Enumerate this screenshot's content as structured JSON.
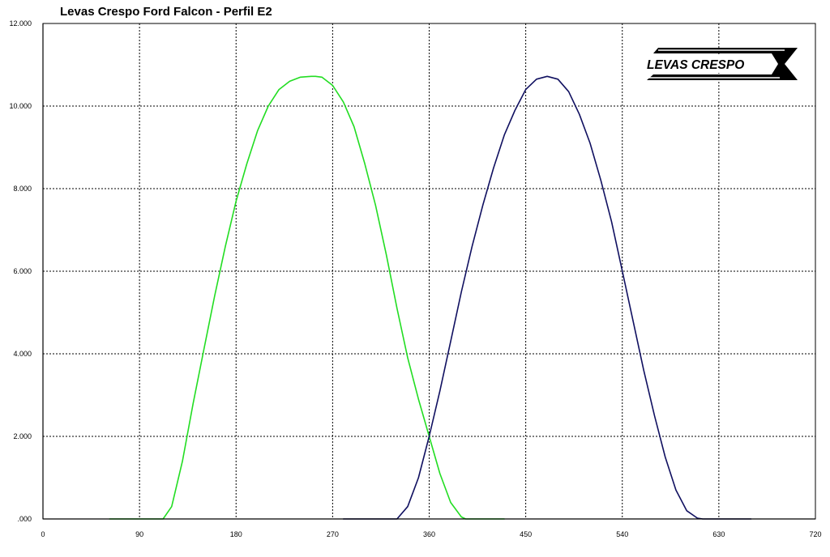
{
  "chart_data": {
    "type": "line",
    "title": "Levas Crespo Ford Falcon - Perfil E2",
    "xlabel": "",
    "ylabel": "",
    "xlim": [
      0,
      720
    ],
    "ylim": [
      0,
      12
    ],
    "x_ticks": [
      0,
      90,
      180,
      270,
      360,
      450,
      540,
      630,
      720
    ],
    "x_tick_labels": [
      "0",
      "90",
      "180",
      "270",
      "360",
      "450",
      "540",
      "630",
      "720"
    ],
    "y_ticks": [
      0,
      2,
      4,
      6,
      8,
      10,
      12
    ],
    "y_tick_labels": [
      ".000",
      "2.000",
      "4.000",
      "6.000",
      "8.000",
      "10.000",
      "12.000"
    ],
    "grid": true,
    "series": [
      {
        "color": "#22dd22",
        "x": [
          62,
          112,
          120,
          130,
          140,
          150,
          160,
          170,
          180,
          190,
          200,
          210,
          220,
          230,
          240,
          250,
          254,
          260,
          270,
          280,
          290,
          300,
          310,
          320,
          330,
          340,
          350,
          360,
          370,
          380,
          390,
          394,
          430
        ],
        "y": [
          0,
          0,
          0.3,
          1.4,
          2.8,
          4.1,
          5.4,
          6.6,
          7.7,
          8.6,
          9.4,
          10.0,
          10.4,
          10.6,
          10.7,
          10.72,
          10.72,
          10.7,
          10.5,
          10.1,
          9.5,
          8.6,
          7.6,
          6.4,
          5.1,
          3.9,
          2.9,
          2.0,
          1.1,
          0.4,
          0.05,
          0,
          0
        ]
      },
      {
        "color": "#101060",
        "x": [
          280,
          330,
          340,
          350,
          360,
          370,
          380,
          390,
          400,
          410,
          420,
          430,
          440,
          450,
          460,
          470,
          480,
          490,
          500,
          510,
          520,
          530,
          540,
          550,
          560,
          570,
          580,
          590,
          600,
          610,
          615,
          660
        ],
        "y": [
          0,
          0,
          0.3,
          1.0,
          2.0,
          3.1,
          4.3,
          5.5,
          6.6,
          7.6,
          8.5,
          9.3,
          9.9,
          10.4,
          10.65,
          10.72,
          10.65,
          10.35,
          9.8,
          9.1,
          8.2,
          7.2,
          6.0,
          4.8,
          3.6,
          2.5,
          1.5,
          0.7,
          0.2,
          0.02,
          0,
          0
        ]
      }
    ]
  },
  "logo": {
    "text": "LEVAS CRESPO"
  }
}
